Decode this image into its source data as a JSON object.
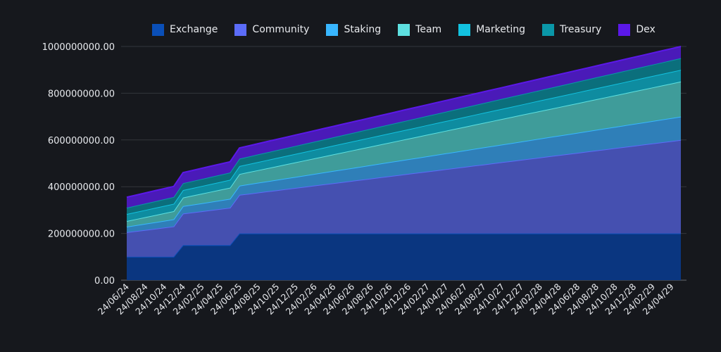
{
  "chart_data": {
    "type": "area",
    "stacked": true,
    "title": "",
    "xlabel": "",
    "ylabel": "",
    "ylim": [
      0,
      1000000000
    ],
    "y_ticks": [
      "0.00",
      "200000000.00",
      "400000000.00",
      "600000000.00",
      "800000000.00",
      "1000000000.00"
    ],
    "y_tick_values": [
      0,
      200000000,
      400000000,
      600000000,
      800000000,
      1000000000
    ],
    "x_tick_labels": [
      "24/06/24",
      "24/08/24",
      "24/10/24",
      "24/12/24",
      "24/02/25",
      "24/04/25",
      "24/06/25",
      "24/08/25",
      "24/10/25",
      "24/12/25",
      "24/02/26",
      "24/04/26",
      "24/06/26",
      "24/08/26",
      "24/10/26",
      "24/12/26",
      "24/02/27",
      "24/04/27",
      "24/06/27",
      "24/08/27",
      "24/10/27",
      "24/12/27",
      "24/02/28",
      "24/04/28",
      "24/06/28",
      "24/08/28",
      "24/10/28",
      "24/12/28",
      "24/02/29",
      "24/04/29"
    ],
    "months": 60,
    "grid": true,
    "legend_position": "top",
    "series": [
      {
        "name": "Exchange",
        "color": "#0a4fb8",
        "fill": "#0a3680",
        "start": 100,
        "end": 200,
        "steps": [
          [
            0,
            100
          ],
          [
            5,
            100
          ],
          [
            6,
            150
          ],
          [
            11,
            150
          ],
          [
            12,
            200
          ],
          [
            59,
            200
          ]
        ]
      },
      {
        "name": "Community",
        "color": "#5b6cf9",
        "fill": "#4550b0",
        "start": 105,
        "end": 400
      },
      {
        "name": "Staking",
        "color": "#38b6ff",
        "fill": "#2f7fb8",
        "start": 24,
        "end": 100
      },
      {
        "name": "Team",
        "color": "#5ee0e0",
        "fill": "#3f9c9a",
        "start": 24,
        "end": 150
      },
      {
        "name": "Marketing",
        "color": "#12c2e0",
        "fill": "#0e8ca0",
        "start": 30,
        "end": 50
      },
      {
        "name": "Treasury",
        "color": "#0a97a8",
        "fill": "#0b6f7c",
        "start": 27,
        "end": 50
      },
      {
        "name": "Dex",
        "color": "#5b18e8",
        "fill": "#4a1ab8",
        "start": 45,
        "end": 50
      }
    ],
    "units": "millions"
  },
  "legend": [
    "Exchange",
    "Community",
    "Staking",
    "Team",
    "Marketing",
    "Treasury",
    "Dex"
  ]
}
